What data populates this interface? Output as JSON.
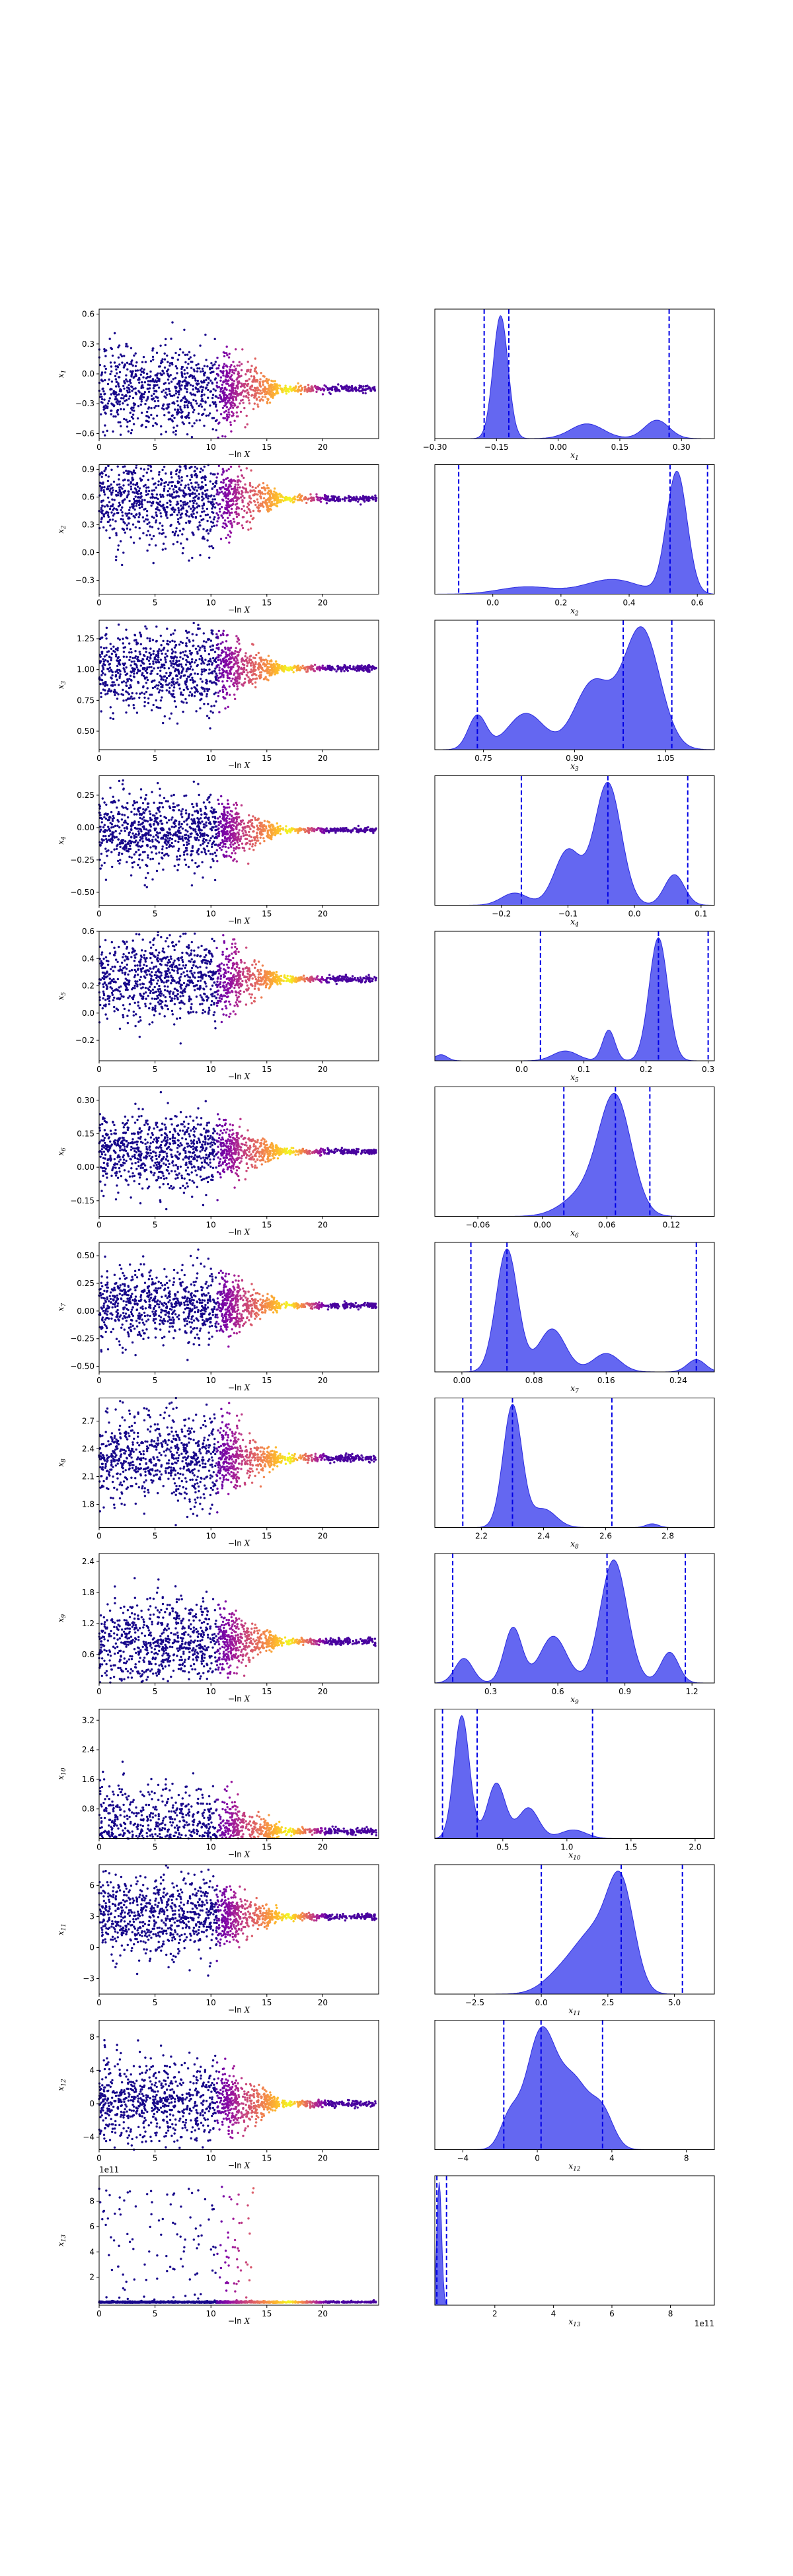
{
  "chart_data": [
    {
      "id": 1,
      "type": "scatter",
      "ylabel": "x1",
      "xlabel": "-ln X",
      "xlim": [
        0,
        25
      ],
      "ylim": [
        -0.65,
        0.65
      ],
      "yticks": [
        "0.6",
        "0.3",
        "0.0",
        "-0.3",
        "-0.6"
      ],
      "ytick_vals": [
        0.6,
        0.3,
        0.0,
        -0.3,
        -0.6
      ],
      "xticks": [
        "0",
        "5",
        "10",
        "15",
        "20"
      ],
      "xtick_vals": [
        0,
        5,
        10,
        15,
        20
      ],
      "converge": -0.15,
      "spread": 0.22
    },
    {
      "id": 1,
      "type": "area",
      "xlabel": "x1",
      "xlim": [
        -0.3,
        0.38
      ],
      "xticks": [
        "-0.30",
        "-0.15",
        "0.00",
        "0.15",
        "0.30"
      ],
      "xtick_vals": [
        -0.3,
        -0.15,
        0.0,
        0.15,
        0.3
      ],
      "peaks": [
        {
          "mu": -0.14,
          "sd": 0.018,
          "h": 1.0
        },
        {
          "mu": 0.07,
          "sd": 0.04,
          "h": 0.12
        },
        {
          "mu": 0.24,
          "sd": 0.03,
          "h": 0.15
        }
      ],
      "vlines": [
        -0.18,
        -0.12,
        0.27
      ]
    },
    {
      "id": 2,
      "type": "scatter",
      "ylabel": "x2",
      "xlabel": "-ln X",
      "xlim": [
        0,
        25
      ],
      "ylim": [
        -0.45,
        0.95
      ],
      "yticks": [
        "0.9",
        "0.6",
        "0.3",
        "0.0",
        "-0.3"
      ],
      "ytick_vals": [
        0.9,
        0.6,
        0.3,
        0.0,
        -0.3
      ],
      "xticks": [
        "0",
        "5",
        "10",
        "15",
        "20"
      ],
      "xtick_vals": [
        0,
        5,
        10,
        15,
        20
      ],
      "converge": 0.58,
      "spread": 0.25
    },
    {
      "id": 2,
      "type": "area",
      "xlabel": "x2",
      "xlim": [
        -0.17,
        0.65
      ],
      "xticks": [
        "0.0",
        "0.2",
        "0.4",
        "0.6"
      ],
      "xtick_vals": [
        0.0,
        0.2,
        0.4,
        0.6
      ],
      "peaks": [
        {
          "mu": 0.54,
          "sd": 0.03,
          "h": 1.0
        },
        {
          "mu": 0.35,
          "sd": 0.08,
          "h": 0.12
        },
        {
          "mu": 0.1,
          "sd": 0.08,
          "h": 0.06
        }
      ],
      "vlines": [
        -0.1,
        0.52,
        0.63
      ]
    },
    {
      "id": 3,
      "type": "scatter",
      "ylabel": "x3",
      "xlabel": "-ln X",
      "xlim": [
        0,
        25
      ],
      "ylim": [
        0.35,
        1.4
      ],
      "yticks": [
        "1.25",
        "1.00",
        "0.75",
        "0.50"
      ],
      "ytick_vals": [
        1.25,
        1.0,
        0.75,
        0.5
      ],
      "xticks": [
        "0",
        "5",
        "10",
        "15",
        "20"
      ],
      "xtick_vals": [
        0,
        5,
        10,
        15,
        20
      ],
      "converge": 1.01,
      "spread": 0.16
    },
    {
      "id": 3,
      "type": "area",
      "xlabel": "x3",
      "xlim": [
        0.67,
        1.13
      ],
      "xticks": [
        "0.75",
        "0.90",
        "1.05"
      ],
      "xtick_vals": [
        0.75,
        0.9,
        1.05
      ],
      "peaks": [
        {
          "mu": 1.01,
          "sd": 0.03,
          "h": 1.0
        },
        {
          "mu": 0.93,
          "sd": 0.03,
          "h": 0.55
        },
        {
          "mu": 0.82,
          "sd": 0.03,
          "h": 0.3
        },
        {
          "mu": 0.74,
          "sd": 0.015,
          "h": 0.28
        }
      ],
      "vlines": [
        0.74,
        0.98,
        1.06
      ]
    },
    {
      "id": 4,
      "type": "scatter",
      "ylabel": "x4",
      "xlabel": "-ln X",
      "xlim": [
        0,
        25
      ],
      "ylim": [
        -0.6,
        0.4
      ],
      "yticks": [
        "0.25",
        "0.00",
        "-0.25",
        "-0.50"
      ],
      "ytick_vals": [
        0.25,
        0.0,
        -0.25,
        -0.5
      ],
      "xticks": [
        "0",
        "5",
        "10",
        "15",
        "20"
      ],
      "xtick_vals": [
        0,
        5,
        10,
        15,
        20
      ],
      "converge": -0.02,
      "spread": 0.14
    },
    {
      "id": 4,
      "type": "area",
      "xlabel": "x4",
      "xlim": [
        -0.3,
        0.12
      ],
      "xticks": [
        "-0.2",
        "-0.1",
        "0.0",
        "0.1"
      ],
      "xtick_vals": [
        -0.2,
        -0.1,
        0.0,
        0.1
      ],
      "peaks": [
        {
          "mu": -0.04,
          "sd": 0.02,
          "h": 1.0
        },
        {
          "mu": -0.1,
          "sd": 0.02,
          "h": 0.45
        },
        {
          "mu": 0.06,
          "sd": 0.015,
          "h": 0.25
        },
        {
          "mu": -0.18,
          "sd": 0.02,
          "h": 0.1
        }
      ],
      "vlines": [
        -0.17,
        -0.04,
        0.08
      ]
    },
    {
      "id": 5,
      "type": "scatter",
      "ylabel": "x5",
      "xlabel": "-ln X",
      "xlim": [
        0,
        25
      ],
      "ylim": [
        -0.35,
        0.6
      ],
      "yticks": [
        "0.6",
        "0.4",
        "0.2",
        "0.0",
        "-0.2"
      ],
      "ytick_vals": [
        0.6,
        0.4,
        0.2,
        0.0,
        -0.2
      ],
      "xticks": [
        "0",
        "5",
        "10",
        "15",
        "20"
      ],
      "xtick_vals": [
        0,
        5,
        10,
        15,
        20
      ],
      "converge": 0.25,
      "spread": 0.15
    },
    {
      "id": 5,
      "type": "area",
      "xlabel": "x5",
      "xlim": [
        -0.14,
        0.31
      ],
      "xticks": [
        "0.0",
        "0.1",
        "0.2",
        "0.3"
      ],
      "xtick_vals": [
        0.0,
        0.1,
        0.2,
        0.3
      ],
      "peaks": [
        {
          "mu": 0.22,
          "sd": 0.015,
          "h": 1.0
        },
        {
          "mu": 0.14,
          "sd": 0.01,
          "h": 0.25
        },
        {
          "mu": 0.07,
          "sd": 0.02,
          "h": 0.08
        },
        {
          "mu": -0.13,
          "sd": 0.01,
          "h": 0.05
        }
      ],
      "vlines": [
        0.03,
        0.22,
        0.3
      ]
    },
    {
      "id": 6,
      "type": "scatter",
      "ylabel": "x6",
      "xlabel": "-ln X",
      "xlim": [
        0,
        25
      ],
      "ylim": [
        -0.22,
        0.36
      ],
      "yticks": [
        "0.30",
        "0.15",
        "0.00",
        "-0.15"
      ],
      "ytick_vals": [
        0.3,
        0.15,
        0.0,
        -0.15
      ],
      "xticks": [
        "0",
        "5",
        "10",
        "15",
        "20"
      ],
      "xtick_vals": [
        0,
        5,
        10,
        15,
        20
      ],
      "converge": 0.07,
      "spread": 0.08
    },
    {
      "id": 6,
      "type": "area",
      "xlabel": "x6",
      "xlim": [
        -0.1,
        0.16
      ],
      "xticks": [
        "-0.06",
        "0.00",
        "0.06",
        "0.12"
      ],
      "xtick_vals": [
        -0.06,
        0.0,
        0.06,
        0.12
      ],
      "peaks": [
        {
          "mu": 0.068,
          "sd": 0.015,
          "h": 1.0
        },
        {
          "mu": 0.04,
          "sd": 0.02,
          "h": 0.2
        }
      ],
      "vlines": [
        0.02,
        0.068,
        0.1
      ]
    },
    {
      "id": 7,
      "type": "scatter",
      "ylabel": "x7",
      "xlabel": "-ln X",
      "xlim": [
        0,
        25
      ],
      "ylim": [
        -0.55,
        0.62
      ],
      "yticks": [
        "0.50",
        "0.25",
        "0.00",
        "-0.25",
        "-0.50"
      ],
      "ytick_vals": [
        0.5,
        0.25,
        0.0,
        -0.25,
        -0.5
      ],
      "xticks": [
        "0",
        "5",
        "10",
        "15",
        "20"
      ],
      "xtick_vals": [
        0,
        5,
        10,
        15,
        20
      ],
      "converge": 0.05,
      "spread": 0.16
    },
    {
      "id": 7,
      "type": "area",
      "xlabel": "x7",
      "xlim": [
        -0.03,
        0.28
      ],
      "xticks": [
        "0.00",
        "0.08",
        "0.16",
        "0.24"
      ],
      "xtick_vals": [
        0.0,
        0.08,
        0.16,
        0.24
      ],
      "peaks": [
        {
          "mu": 0.05,
          "sd": 0.012,
          "h": 1.0
        },
        {
          "mu": 0.1,
          "sd": 0.015,
          "h": 0.35
        },
        {
          "mu": 0.16,
          "sd": 0.015,
          "h": 0.15
        },
        {
          "mu": 0.26,
          "sd": 0.01,
          "h": 0.1
        }
      ],
      "vlines": [
        0.01,
        0.05,
        0.26
      ]
    },
    {
      "id": 8,
      "type": "scatter",
      "ylabel": "x8",
      "xlabel": "-ln X",
      "xlim": [
        0,
        25
      ],
      "ylim": [
        1.55,
        2.95
      ],
      "yticks": [
        "2.7",
        "2.4",
        "2.1",
        "1.8"
      ],
      "ytick_vals": [
        2.7,
        2.4,
        2.1,
        1.8
      ],
      "xticks": [
        "0",
        "5",
        "10",
        "15",
        "20"
      ],
      "xtick_vals": [
        0,
        5,
        10,
        15,
        20
      ],
      "converge": 2.3,
      "spread": 0.25
    },
    {
      "id": 8,
      "type": "area",
      "xlabel": "x8",
      "xlim": [
        2.05,
        2.95
      ],
      "xticks": [
        "2.2",
        "2.4",
        "2.6",
        "2.8"
      ],
      "xtick_vals": [
        2.2,
        2.4,
        2.6,
        2.8
      ],
      "peaks": [
        {
          "mu": 2.3,
          "sd": 0.03,
          "h": 1.0
        },
        {
          "mu": 2.4,
          "sd": 0.04,
          "h": 0.15
        },
        {
          "mu": 2.75,
          "sd": 0.02,
          "h": 0.03
        }
      ],
      "vlines": [
        2.14,
        2.3,
        2.62
      ]
    },
    {
      "id": 9,
      "type": "scatter",
      "ylabel": "x9",
      "xlabel": "-ln X",
      "xlim": [
        0,
        25
      ],
      "ylim": [
        0.05,
        2.55
      ],
      "yticks": [
        "2.4",
        "1.8",
        "1.2",
        "0.6"
      ],
      "ytick_vals": [
        2.4,
        1.8,
        1.2,
        0.6
      ],
      "xticks": [
        "0",
        "5",
        "10",
        "15",
        "20"
      ],
      "xtick_vals": [
        0,
        5,
        10,
        15,
        20
      ],
      "converge": 0.85,
      "spread": 0.4
    },
    {
      "id": 9,
      "type": "area",
      "xlabel": "x9",
      "xlim": [
        0.05,
        1.3
      ],
      "xticks": [
        "0.3",
        "0.6",
        "0.9",
        "1.2"
      ],
      "xtick_vals": [
        0.3,
        0.6,
        0.9,
        1.2
      ],
      "peaks": [
        {
          "mu": 0.85,
          "sd": 0.06,
          "h": 1.0
        },
        {
          "mu": 0.58,
          "sd": 0.06,
          "h": 0.38
        },
        {
          "mu": 0.4,
          "sd": 0.04,
          "h": 0.45
        },
        {
          "mu": 0.18,
          "sd": 0.04,
          "h": 0.2
        },
        {
          "mu": 1.1,
          "sd": 0.04,
          "h": 0.25
        }
      ],
      "vlines": [
        0.13,
        0.82,
        1.17
      ]
    },
    {
      "id": 10,
      "type": "scatter",
      "ylabel": "x10",
      "xlabel": "-ln X",
      "xlim": [
        0,
        25
      ],
      "ylim": [
        0.0,
        3.5
      ],
      "yticks": [
        "3.2",
        "2.4",
        "1.6",
        "0.8"
      ],
      "ytick_vals": [
        3.2,
        2.4,
        1.6,
        0.8
      ],
      "xticks": [
        "0",
        "5",
        "10",
        "15",
        "20"
      ],
      "xtick_vals": [
        0,
        5,
        10,
        15,
        20
      ],
      "converge": 0.2,
      "spread": 0.6
    },
    {
      "id": 10,
      "type": "area",
      "xlabel": "x10",
      "xlim": [
        -0.03,
        2.15
      ],
      "xticks": [
        "0.5",
        "1.0",
        "1.5",
        "2.0"
      ],
      "xtick_vals": [
        0.5,
        1.0,
        1.5,
        2.0
      ],
      "peaks": [
        {
          "mu": 0.18,
          "sd": 0.06,
          "h": 1.0
        },
        {
          "mu": 0.45,
          "sd": 0.07,
          "h": 0.45
        },
        {
          "mu": 0.7,
          "sd": 0.08,
          "h": 0.25
        },
        {
          "mu": 1.05,
          "sd": 0.1,
          "h": 0.07
        }
      ],
      "vlines": [
        0.03,
        0.3,
        1.2
      ]
    },
    {
      "id": 11,
      "type": "scatter",
      "ylabel": "x11",
      "xlabel": "-ln X",
      "xlim": [
        0,
        25
      ],
      "ylim": [
        -4.5,
        8.0
      ],
      "yticks": [
        "6",
        "3",
        "0",
        "-3"
      ],
      "ytick_vals": [
        6,
        3,
        0,
        -3
      ],
      "xticks": [
        "0",
        "5",
        "10",
        "15",
        "20"
      ],
      "xtick_vals": [
        0,
        5,
        10,
        15,
        20
      ],
      "converge": 3.0,
      "spread": 1.8
    },
    {
      "id": 11,
      "type": "area",
      "xlabel": "x11",
      "xlim": [
        -4.0,
        6.5
      ],
      "xticks": [
        "-2.5",
        "0.0",
        "2.5",
        "5.0"
      ],
      "xtick_vals": [
        -2.5,
        0.0,
        2.5,
        5.0
      ],
      "peaks": [
        {
          "mu": 3.0,
          "sd": 0.5,
          "h": 1.0
        },
        {
          "mu": 2.0,
          "sd": 0.7,
          "h": 0.55
        },
        {
          "mu": 0.8,
          "sd": 0.7,
          "h": 0.2
        }
      ],
      "vlines": [
        0.0,
        3.0,
        5.3
      ]
    },
    {
      "id": 12,
      "type": "scatter",
      "ylabel": "x12",
      "xlabel": "-ln X",
      "xlim": [
        0,
        25
      ],
      "ylim": [
        -5.5,
        10.0
      ],
      "yticks": [
        "8",
        "4",
        "0",
        "-4"
      ],
      "ytick_vals": [
        8,
        4,
        0,
        -4
      ],
      "xticks": [
        "0",
        "5",
        "10",
        "15",
        "20"
      ],
      "xtick_vals": [
        0,
        5,
        10,
        15,
        20
      ],
      "converge": 0.0,
      "spread": 2.6
    },
    {
      "id": 12,
      "type": "area",
      "xlabel": "x12",
      "xlim": [
        -5.5,
        9.5
      ],
      "xticks": [
        "-4",
        "0",
        "4",
        "8"
      ],
      "xtick_vals": [
        -4,
        0,
        4,
        8
      ],
      "peaks": [
        {
          "mu": 0.2,
          "sd": 0.8,
          "h": 1.0
        },
        {
          "mu": 2.0,
          "sd": 0.8,
          "h": 0.55
        },
        {
          "mu": 3.5,
          "sd": 0.6,
          "h": 0.3
        },
        {
          "mu": -1.5,
          "sd": 0.5,
          "h": 0.25
        }
      ],
      "vlines": [
        -1.8,
        0.2,
        3.5
      ]
    },
    {
      "id": 13,
      "type": "scatter",
      "ylabel": "x13",
      "xlabel": "-ln X",
      "xlim": [
        0,
        25
      ],
      "ylim": [
        -0.2,
        10.0
      ],
      "yticks": [
        "8",
        "6",
        "4",
        "2"
      ],
      "ytick_vals": [
        8,
        6,
        4,
        2
      ],
      "xticks": [
        "0",
        "5",
        "10",
        "15",
        "20"
      ],
      "xtick_vals": [
        0,
        5,
        10,
        15,
        20
      ],
      "converge": 0.0,
      "spread": 0.0,
      "offset_text": "1e11"
    },
    {
      "id": 13,
      "type": "area",
      "xlabel": "x13",
      "xlim": [
        -0.05,
        9.5
      ],
      "xticks": [
        "2",
        "4",
        "6",
        "8"
      ],
      "xtick_vals": [
        2,
        4,
        6,
        8
      ],
      "peaks": [
        {
          "mu": 0.1,
          "sd": 0.08,
          "h": 1.0
        }
      ],
      "vlines": [
        0.02,
        0.35
      ],
      "offset_text": "1e11"
    }
  ]
}
